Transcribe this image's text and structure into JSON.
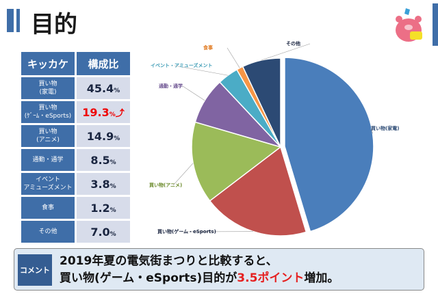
{
  "header": {
    "title": "目的"
  },
  "table": {
    "headers": [
      "キッカケ",
      "構成比"
    ],
    "rows": [
      {
        "label1": "買い物",
        "label2": "(家電)",
        "value": "45.4",
        "unit": "%"
      },
      {
        "label1": "買い物",
        "label2": "(ｹﾞｰﾑ・eSports)",
        "value": "19.3",
        "unit": "%",
        "arrow": "⤴"
      },
      {
        "label1": "買い物",
        "label2": "(アニメ)",
        "value": "14.9",
        "unit": "%"
      },
      {
        "label1": "通勤・通学",
        "label2": "",
        "value": "8.5",
        "unit": "%"
      },
      {
        "label1": "イベント",
        "label2": "アミューズメント",
        "value": "3.8",
        "unit": "%"
      },
      {
        "label1": "食事",
        "label2": "",
        "value": "1.2",
        "unit": "%"
      },
      {
        "label1": "その他",
        "label2": "",
        "value": "7.0",
        "unit": "%"
      }
    ]
  },
  "chart_data": {
    "type": "pie",
    "categories": [
      "買い物(家電)",
      "買い物(ゲーム・eSports)",
      "買い物(アニメ)",
      "通勤・通学",
      "イベント・アミューズメント",
      "食事",
      "その他"
    ],
    "values": [
      45.4,
      19.3,
      14.9,
      8.5,
      3.8,
      1.2,
      7.0
    ],
    "colors": [
      "#4a7ebb",
      "#c0504d",
      "#9bbb59",
      "#8064a2",
      "#4bacc6",
      "#f79646",
      "#2c4a74"
    ],
    "label_colors": [
      "#2c4a74",
      "#1a2540",
      "#6b8a2a",
      "#6a5090",
      "#3a9ab4",
      "#e07a20",
      "#1a2540"
    ]
  },
  "comment": {
    "tag": "コメント",
    "line1": "2019年夏の電気街まつりと比較すると、",
    "line2_pre": "買い物(ゲーム・eSports)目的が",
    "line2_hl": "3.5ポイント",
    "line2_post": "増加。"
  }
}
